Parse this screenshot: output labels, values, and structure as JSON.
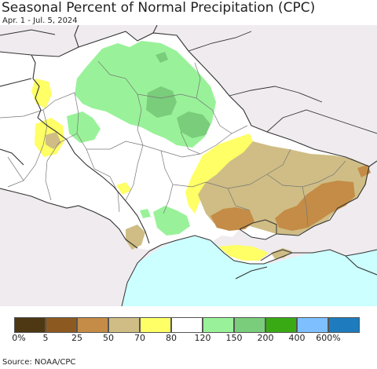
{
  "title": "Seasonal Percent of Normal Precipitation (CPC)",
  "subtitle": "Apr. 1 - Jul. 5, 2024",
  "source": "Source: NOAA/CPC",
  "colors": {
    "background": "#efebee",
    "sea": "#ccffff",
    "border": "#333333",
    "region_border": "#777777"
  },
  "legend": {
    "colors": [
      "#4d3813",
      "#8c5a20",
      "#c48c46",
      "#cfbd85",
      "#ffff66",
      "#ffffff",
      "#99f299",
      "#7acd7a",
      "#3aaa14",
      "#7ec0ff",
      "#1e7bbd"
    ],
    "labels": [
      "0%",
      "5",
      "25",
      "50",
      "70",
      "80",
      "120",
      "150",
      "200",
      "400",
      "600%"
    ]
  }
}
